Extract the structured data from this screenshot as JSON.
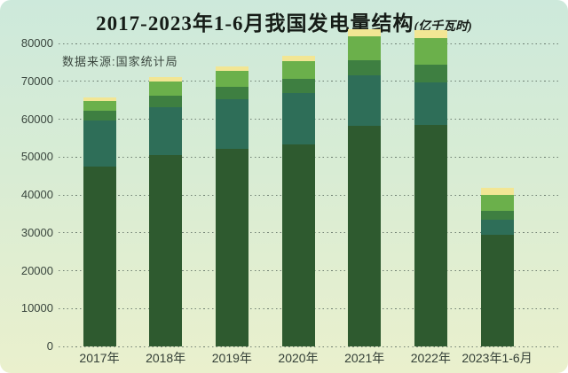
{
  "header": {
    "title": "2017-2023年1-6月我国发电量结构",
    "unit": "(亿千瓦时)",
    "source": "数据来源:国家统计局"
  },
  "chart_data": {
    "type": "bar",
    "stacked": true,
    "title": "2017-2023年1-6月我国发电量结构(亿千瓦时)",
    "source_note": "数据来源:国家统计局",
    "categories": [
      "2017年",
      "2018年",
      "2019年",
      "2020年",
      "2021年",
      "2022年",
      "2023年1-6月"
    ],
    "series": [
      {
        "name": "dark-green-bottom-segment",
        "color": "#2e5a2f",
        "values": [
          47500,
          50500,
          52100,
          53300,
          58300,
          58500,
          29500
        ]
      },
      {
        "name": "teal-segment",
        "color": "#2e6e58",
        "values": [
          12200,
          12600,
          13200,
          13600,
          13300,
          11300,
          3900
        ]
      },
      {
        "name": "medium-green-segment",
        "color": "#3e7f41",
        "values": [
          2500,
          3000,
          3300,
          3700,
          3900,
          4650,
          2300
        ]
      },
      {
        "name": "bright-green-segment",
        "color": "#6bb04b",
        "values": [
          2700,
          3900,
          4100,
          4700,
          6400,
          6850,
          4300
        ]
      },
      {
        "name": "pale-yellow-top-segment",
        "color": "#f2e694",
        "values": [
          900,
          1200,
          1200,
          1400,
          1800,
          2100,
          1900
        ]
      }
    ],
    "ylim": [
      0,
      80000
    ],
    "yticks": [
      "0",
      "10000",
      "20000",
      "30000",
      "40000",
      "50000",
      "60000",
      "70000",
      "80000"
    ],
    "xlabel": "",
    "ylabel": "",
    "grid": "horizontal-dotted",
    "legend": "none"
  },
  "colors": {
    "background_top": "#cde9db",
    "background_bottom": "#eaf0cd",
    "gridline": "#5c6c61",
    "axis_text": "#39453d",
    "title_text": "#161c17"
  }
}
